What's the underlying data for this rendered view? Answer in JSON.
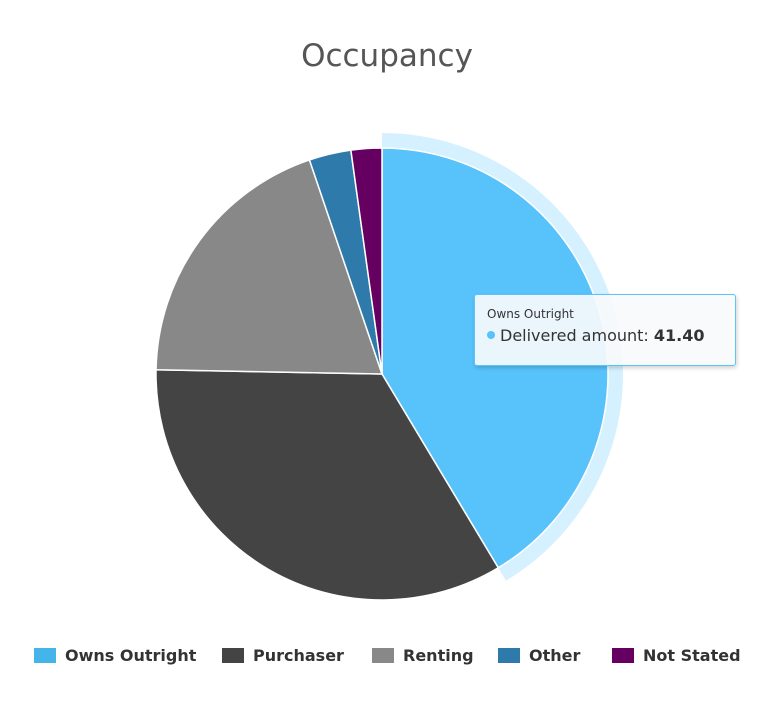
{
  "chart_data": {
    "type": "pie",
    "title": "Occupancy",
    "slices": [
      {
        "name": "Owns Outright",
        "value": 41.4,
        "color": "#58c3fb"
      },
      {
        "name": "Purchaser",
        "value": 33.9,
        "color": "#444444"
      },
      {
        "name": "Renting",
        "value": 19.5,
        "color": "#888888"
      },
      {
        "name": "Other",
        "value": 3.0,
        "color": "#2e7bab"
      },
      {
        "name": "Not Stated",
        "value": 2.2,
        "color": "#650060"
      }
    ],
    "hovered_slice": "Owns Outright",
    "legend_position": "bottom"
  },
  "tooltip": {
    "title": "Owns Outright",
    "series_label": "Delivered amount",
    "value": "41.40",
    "dot_color": "#58c3fb"
  },
  "legend": {
    "items": [
      {
        "label": "Owns Outright",
        "color": "#45b4ea"
      },
      {
        "label": "Purchaser",
        "color": "#444444"
      },
      {
        "label": "Renting",
        "color": "#888888"
      },
      {
        "label": "Other",
        "color": "#2e7bab"
      },
      {
        "label": "Not Stated",
        "color": "#650060"
      }
    ]
  }
}
